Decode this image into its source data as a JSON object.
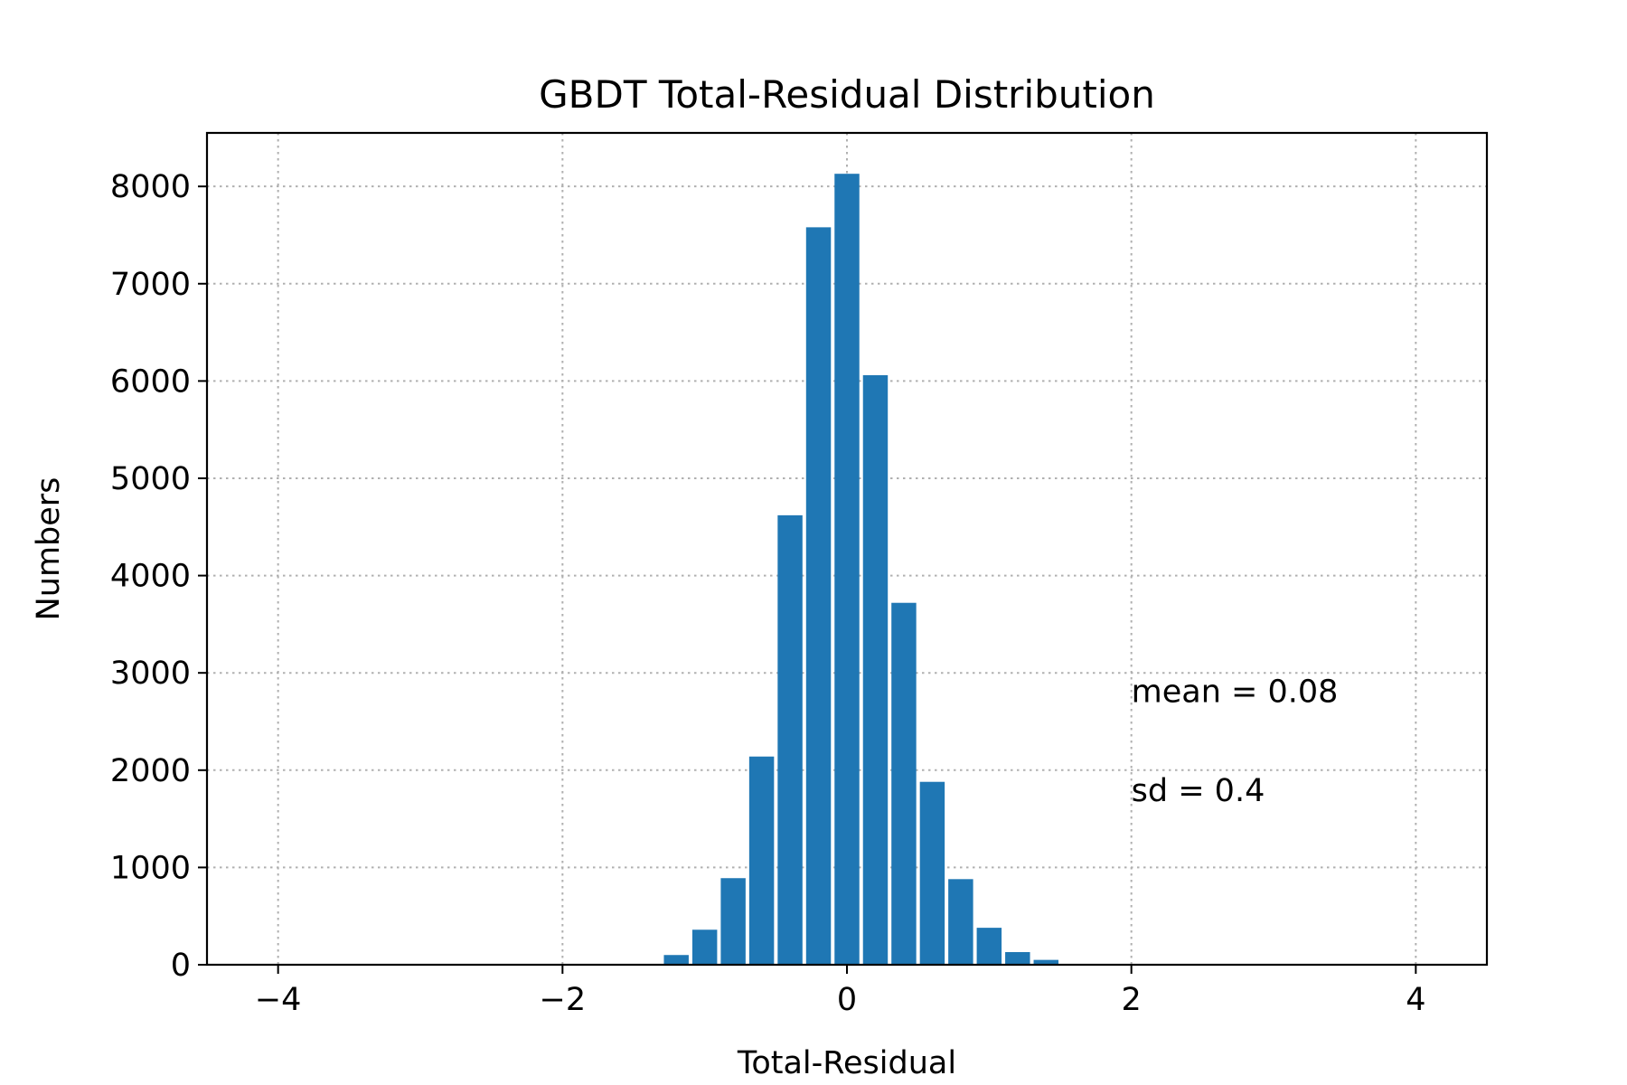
{
  "chart_data": {
    "type": "bar",
    "title": "GBDT Total-Residual Distribution",
    "xlabel": "Total-Residual",
    "ylabel": "Numbers",
    "xlim": [
      -4.5,
      4.5
    ],
    "ylim": [
      0,
      8550
    ],
    "xticks": [
      -4,
      -2,
      0,
      2,
      4
    ],
    "xtick_labels": [
      "−4",
      "−2",
      "0",
      "2",
      "4"
    ],
    "yticks": [
      0,
      1000,
      2000,
      3000,
      4000,
      5000,
      6000,
      7000,
      8000
    ],
    "ytick_labels": [
      "0",
      "1000",
      "2000",
      "3000",
      "4000",
      "5000",
      "6000",
      "7000",
      "8000"
    ],
    "grid": true,
    "bin_width": 0.2,
    "color": "#1f77b4",
    "bins": [
      {
        "x": -1.2,
        "count": 100
      },
      {
        "x": -1.0,
        "count": 360
      },
      {
        "x": -0.8,
        "count": 890
      },
      {
        "x": -0.6,
        "count": 2140
      },
      {
        "x": -0.4,
        "count": 4620
      },
      {
        "x": -0.2,
        "count": 7580
      },
      {
        "x": 0.0,
        "count": 8130
      },
      {
        "x": 0.2,
        "count": 6060
      },
      {
        "x": 0.4,
        "count": 3720
      },
      {
        "x": 0.6,
        "count": 1880
      },
      {
        "x": 0.8,
        "count": 880
      },
      {
        "x": 1.0,
        "count": 380
      },
      {
        "x": 1.2,
        "count": 130
      },
      {
        "x": 1.4,
        "count": 50
      }
    ],
    "annotations": [
      {
        "text": "mean = 0.08",
        "x": 2.0,
        "y": 2700
      },
      {
        "text": "sd = 0.4",
        "x": 2.0,
        "y": 1680
      }
    ]
  }
}
